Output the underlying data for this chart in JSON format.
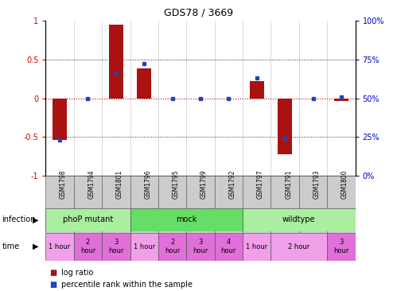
{
  "title": "GDS78 / 3669",
  "samples": [
    "GSM1798",
    "GSM1794",
    "GSM1801",
    "GSM1796",
    "GSM1795",
    "GSM1799",
    "GSM1792",
    "GSM1797",
    "GSM1791",
    "GSM1793",
    "GSM1800"
  ],
  "log_ratio": [
    -0.54,
    0.0,
    0.95,
    0.38,
    0.0,
    0.0,
    0.0,
    0.22,
    -0.72,
    0.0,
    -0.04
  ],
  "percentile": [
    23,
    50,
    66,
    72,
    50,
    50,
    50,
    63,
    24,
    50,
    51
  ],
  "ylim": [
    -1,
    1
  ],
  "y2lim": [
    0,
    100
  ],
  "bar_color": "#aa1111",
  "dot_color": "#2244bb",
  "zero_line_color": "#cc0000",
  "tick_color_left": "#cc0000",
  "tick_color_right": "#0000cc",
  "sample_box_color": "#cccccc",
  "inf_color_light": "#aaeea0",
  "inf_color_dark": "#66dd66",
  "time_color_light": "#f0a0e8",
  "time_color_dark": "#e070d8",
  "bg_color": "#ffffff",
  "infection_groups": [
    {
      "label": "phoP mutant",
      "start": 0,
      "end": 3,
      "dark": false
    },
    {
      "label": "mock",
      "start": 3,
      "end": 7,
      "dark": true
    },
    {
      "label": "wildtype",
      "start": 7,
      "end": 11,
      "dark": false
    }
  ],
  "time_groups": [
    {
      "label": "1 hour",
      "start": 0,
      "end": 1,
      "dark": false
    },
    {
      "label": "2\nhour",
      "start": 1,
      "end": 2,
      "dark": true
    },
    {
      "label": "3\nhour",
      "start": 2,
      "end": 3,
      "dark": true
    },
    {
      "label": "1 hour",
      "start": 3,
      "end": 4,
      "dark": false
    },
    {
      "label": "2\nhour",
      "start": 4,
      "end": 5,
      "dark": true
    },
    {
      "label": "3\nhour",
      "start": 5,
      "end": 6,
      "dark": true
    },
    {
      "label": "4\nhour",
      "start": 6,
      "end": 7,
      "dark": true
    },
    {
      "label": "1 hour",
      "start": 7,
      "end": 8,
      "dark": false
    },
    {
      "label": "2 hour",
      "start": 8,
      "end": 10,
      "dark": false
    },
    {
      "label": "3\nhour",
      "start": 10,
      "end": 11,
      "dark": true
    }
  ],
  "left_label_infection": "infection",
  "left_label_time": "time",
  "legend_log": "log ratio",
  "legend_pct": "percentile rank within the sample"
}
